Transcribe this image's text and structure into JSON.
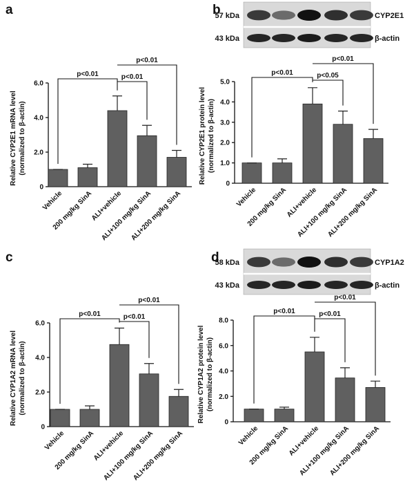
{
  "chart_data": [
    {
      "type": "bar",
      "panel": "a",
      "color": "#606060",
      "ylabel": [
        "Relative CYP2E1 mRNA level",
        "(normalized to β-actin)"
      ],
      "categories": [
        "Vehicle",
        "200 mg/kg SinA",
        "ALI+vehicle",
        "ALI+100 mg/kg SinA",
        "ALI+200 mg/kg SinA"
      ],
      "values": [
        1.0,
        1.1,
        4.4,
        2.95,
        1.7
      ],
      "errors": [
        0,
        0.2,
        0.85,
        0.6,
        0.4
      ],
      "ylim": [
        0,
        6
      ],
      "yticks": [
        0,
        {
          "value": 2,
          "label": "2.0"
        },
        {
          "value": 4,
          "label": "4.0"
        },
        {
          "value": 6,
          "label": "6.0"
        }
      ],
      "annotations": [
        {
          "between": [
            "Vehicle",
            "ALI+vehicle"
          ],
          "label": "p<0.01"
        },
        {
          "between": [
            "ALI+vehicle",
            "ALI+100 mg/kg SinA"
          ],
          "label": "p<0.01"
        },
        {
          "between": [
            "ALI+vehicle",
            "ALI+200 mg/kg SinA"
          ],
          "label": "p<0.01"
        }
      ]
    },
    {
      "type": "bar",
      "panel": "b",
      "color": "#606060",
      "ylabel": [
        "Relative CYP2E1 protein level",
        "(normalized to β-actin)"
      ],
      "blot": [
        {
          "size": "57 kDa",
          "protein": "CYP2E1"
        },
        {
          "size": "43 kDa",
          "protein": "β-actin"
        }
      ],
      "categories": [
        "Vehicle",
        "200 mg/kg SinA",
        "ALI+vehicle",
        "ALI+100 mg/kg SinA",
        "ALI+200 mg/kg SinA"
      ],
      "values": [
        1.0,
        1.0,
        3.9,
        2.9,
        2.2
      ],
      "errors": [
        0,
        0.2,
        0.8,
        0.65,
        0.45
      ],
      "ylim": [
        0,
        5
      ],
      "yticks": [
        0,
        {
          "value": 1,
          "label": "1.0"
        },
        {
          "value": 2,
          "label": "2.0"
        },
        {
          "value": 3,
          "label": "3.0"
        },
        {
          "value": 4,
          "label": "4.0"
        },
        {
          "value": 5,
          "label": "5.0"
        }
      ],
      "annotations": [
        {
          "between": [
            "Vehicle",
            "ALI+vehicle"
          ],
          "label": "p<0.01"
        },
        {
          "between": [
            "ALI+vehicle",
            "ALI+100 mg/kg SinA"
          ],
          "label": "p<0.05"
        },
        {
          "between": [
            "ALI+vehicle",
            "ALI+200 mg/kg SinA"
          ],
          "label": "p<0.01"
        }
      ]
    },
    {
      "type": "bar",
      "panel": "c",
      "color": "#606060",
      "ylabel": [
        "Relative CYP1A2 mRNA level",
        "(normalized to β-actin)"
      ],
      "categories": [
        "Vehicle",
        "200 mg/kg SinA",
        "ALI+vehicle",
        "ALI+100 mg/kg SinA",
        "ALI+200 mg/kg SinA"
      ],
      "values": [
        1.0,
        1.0,
        4.75,
        3.05,
        1.75
      ],
      "errors": [
        0,
        0.2,
        0.95,
        0.6,
        0.4
      ],
      "ylim": [
        0,
        6
      ],
      "yticks": [
        0,
        {
          "value": 2,
          "label": "2.0"
        },
        {
          "value": 4,
          "label": "4.0"
        },
        {
          "value": 6,
          "label": "6.0"
        }
      ],
      "annotations": [
        {
          "between": [
            "Vehicle",
            "ALI+vehicle"
          ],
          "label": "p<0.01"
        },
        {
          "between": [
            "ALI+vehicle",
            "ALI+100 mg/kg SinA"
          ],
          "label": "p<0.01"
        },
        {
          "between": [
            "ALI+vehicle",
            "ALI+200 mg/kg SinA"
          ],
          "label": "p<0.01"
        }
      ]
    },
    {
      "type": "bar",
      "panel": "d",
      "color": "#606060",
      "ylabel": [
        "Relative CYP1A2 protein level",
        "(normalized to β-actin)"
      ],
      "blot": [
        {
          "size": "58 kDa",
          "protein": "CYP1A2"
        },
        {
          "size": "43 kDa",
          "protein": "β-actin"
        }
      ],
      "categories": [
        "Vehicle",
        "200 mg/kg SinA",
        "ALI+vehicle",
        "ALI+100 mg/kg SinA",
        "ALI+200 mg/kg SinA"
      ],
      "values": [
        1.0,
        1.0,
        5.5,
        3.45,
        2.7
      ],
      "errors": [
        0,
        0.15,
        1.15,
        0.8,
        0.5
      ],
      "ylim": [
        0,
        8
      ],
      "yticks": [
        0,
        {
          "value": 2,
          "label": "2.0"
        },
        {
          "value": 4,
          "label": "4.0"
        },
        {
          "value": 6,
          "label": "6.0"
        },
        {
          "value": 8,
          "label": "8.0"
        }
      ],
      "annotations": [
        {
          "between": [
            "Vehicle",
            "ALI+vehicle"
          ],
          "label": "p<0.01"
        },
        {
          "between": [
            "ALI+vehicle",
            "ALI+100 mg/kg SinA"
          ],
          "label": "p<0.01"
        },
        {
          "between": [
            "ALI+vehicle",
            "ALI+200 mg/kg SinA"
          ],
          "label": "p<0.01"
        }
      ]
    }
  ]
}
